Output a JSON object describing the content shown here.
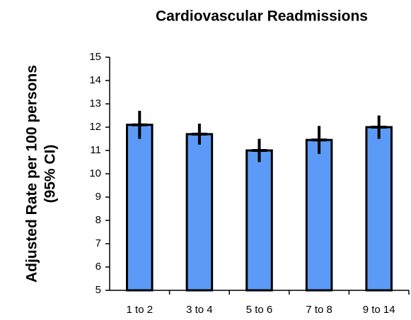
{
  "chart_data": {
    "type": "bar",
    "title": "Cardiovascular Readmissions",
    "y_label": [
      "Adjusted Rate per 100 persons",
      "(95% CI)"
    ],
    "categories": [
      "1 to 2",
      "3 to 4",
      "5 to 6",
      "7 to 8",
      "9 to 14"
    ],
    "values": [
      12.1,
      11.7,
      11.0,
      11.45,
      12.0
    ],
    "errors": [
      0.6,
      0.45,
      0.5,
      0.6,
      0.5
    ],
    "color": "#5b9bf7",
    "ylim": [
      5,
      15
    ],
    "yticks": [
      5,
      6,
      7,
      8,
      9,
      10,
      11,
      12,
      13,
      14,
      15
    ],
    "grid": false
  }
}
